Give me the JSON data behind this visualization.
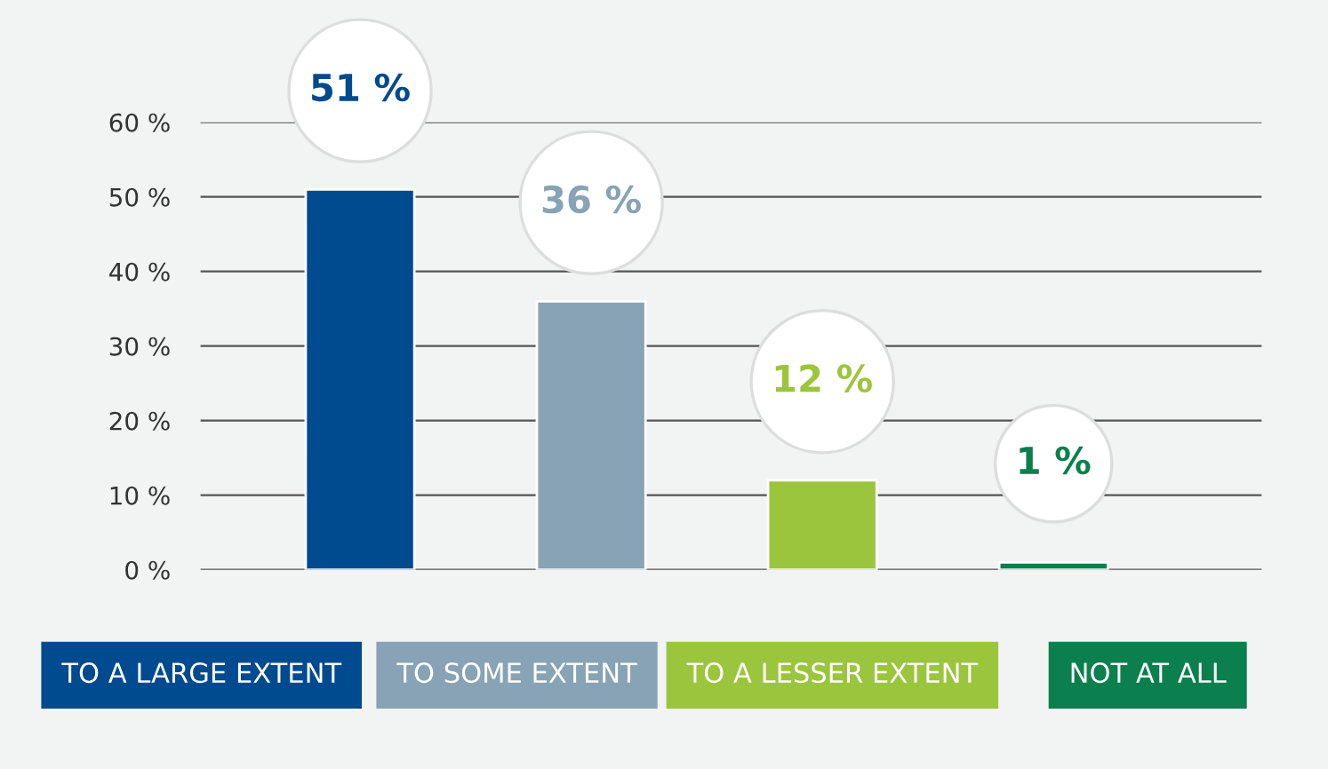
{
  "chart_data": {
    "type": "bar",
    "categories": [
      "TO A LARGE EXTENT",
      "TO SOME EXTENT",
      "TO A LESSER EXTENT",
      "NOT AT ALL"
    ],
    "values": [
      51,
      36,
      12,
      1
    ],
    "colors": [
      "#004a8f",
      "#87a3b5",
      "#9bc53d",
      "#0b7f4d"
    ],
    "value_labels": [
      "51 %",
      "36 %",
      "12 %",
      "1 %"
    ],
    "ylim": [
      0,
      60
    ],
    "yticks": [
      {
        "value": 0,
        "label": "0 %"
      },
      {
        "value": 10,
        "label": "10 %"
      },
      {
        "value": 20,
        "label": "20 %"
      },
      {
        "value": 30,
        "label": "30 %"
      },
      {
        "value": 40,
        "label": "40 %"
      },
      {
        "value": 50,
        "label": "50 %"
      },
      {
        "value": 60,
        "label": "60 %"
      }
    ],
    "grid": "y"
  }
}
